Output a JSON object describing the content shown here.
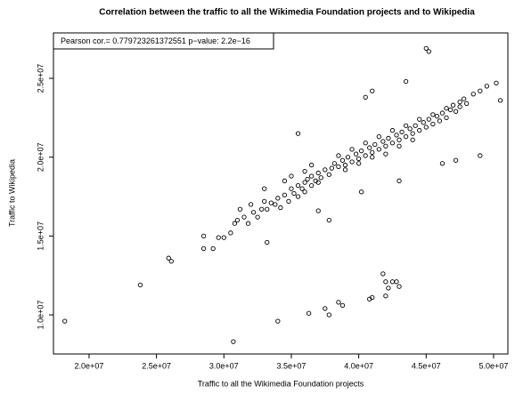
{
  "chart_data": {
    "type": "scatter",
    "title": "Correlation between the traffic to all the Wikimedia Foundation projects and to Wikipedia",
    "x_label": "Traffic to all the Wikimedia Foundation projects",
    "y_label": "Traffic to Wikipedia",
    "annotation": "Pearson cor.= 0.779723261372551 p−value:  2.2e−16",
    "color": "#000000",
    "xlim": [
      17360000.0,
      51060000.0
    ],
    "ylim": [
      7520000.0,
      27880000.0
    ],
    "xticks": [
      {
        "value": 20000000.0,
        "label": "2.0e+07"
      },
      {
        "value": 25000000.0,
        "label": "2.5e+07"
      },
      {
        "value": 30000000.0,
        "label": "3.0e+07"
      },
      {
        "value": 35000000.0,
        "label": "3.5e+07"
      },
      {
        "value": 40000000.0,
        "label": "4.0e+07"
      },
      {
        "value": 45000000.0,
        "label": "4.5e+07"
      },
      {
        "value": 50000000.0,
        "label": "5.0e+07"
      }
    ],
    "yticks": [
      {
        "value": 10000000.0,
        "label": "1.0e+07"
      },
      {
        "value": 15000000.0,
        "label": "1.5e+07"
      },
      {
        "value": 20000000.0,
        "label": "2.0e+07"
      },
      {
        "value": 25000000.0,
        "label": "2.5e+07"
      }
    ],
    "x": [
      18200000.0,
      23800000.0,
      25900000.0,
      26100000.0,
      28500000.0,
      29200000.0,
      28500000.0,
      29600000.0,
      30000000.0,
      30500000.0,
      30800000.0,
      31000000.0,
      31200000.0,
      31500000.0,
      31800000.0,
      32000000.0,
      32200000.0,
      32500000.0,
      32800000.0,
      33000000.0,
      33200000.0,
      33200000.0,
      33500000.0,
      33800000.0,
      34000000.0,
      34200000.0,
      34500000.0,
      34800000.0,
      35000000.0,
      35200000.0,
      35500000.0,
      35800000.0,
      36000000.0,
      36200000.0,
      36500000.0,
      36800000.0,
      37000000.0,
      37200000.0,
      37500000.0,
      37800000.0,
      38000000.0,
      38200000.0,
      38500000.0,
      38800000.0,
      39000000.0,
      39200000.0,
      39500000.0,
      39800000.0,
      40000000.0,
      40200000.0,
      40500000.0,
      40800000.0,
      41000000.0,
      41200000.0,
      41500000.0,
      41800000.0,
      42000000.0,
      42200000.0,
      42500000.0,
      42800000.0,
      43000000.0,
      43200000.0,
      43500000.0,
      43800000.0,
      44000000.0,
      44200000.0,
      44500000.0,
      44800000.0,
      45000000.0,
      45200000.0,
      45500000.0,
      45800000.0,
      46000000.0,
      46200000.0,
      46500000.0,
      46800000.0,
      47000000.0,
      47200000.0,
      47500000.0,
      47800000.0,
      48000000.0,
      48500000.0,
      49000000.0,
      49500000.0,
      50200000.0,
      50500000.0,
      45000000.0,
      45200000.0,
      43500000.0,
      41000000.0,
      40500000.0,
      35500000.0,
      37000000.0,
      37800000.0,
      40200000.0,
      43000000.0,
      46200000.0,
      47200000.0,
      49000000.0,
      36300000.0,
      37500000.0,
      37800000.0,
      38500000.0,
      38800000.0,
      40800000.0,
      41000000.0,
      41800000.0,
      42000000.0,
      42200000.0,
      42500000.0,
      42800000.0,
      43000000.0,
      42000000.0,
      34000000.0,
      30700000.0,
      35500000.0,
      36000000.0,
      36500000.0,
      37000000.0,
      39000000.0,
      40000000.0,
      41000000.0,
      42000000.0,
      43000000.0,
      44000000.0,
      38500000.0,
      39500000.0,
      40500000.0,
      41500000.0,
      42500000.0,
      43500000.0,
      44500000.0,
      45500000.0,
      46500000.0,
      47500000.0,
      36000000.0,
      36500000.0,
      35000000.0,
      34500000.0,
      33000000.0
    ],
    "values": [
      9600000.0,
      11900000.0,
      13600000.0,
      13400000.0,
      14200000.0,
      14200000.0,
      15000000.0,
      14900000.0,
      14900000.0,
      15200000.0,
      15800000.0,
      16000000.0,
      16700000.0,
      16200000.0,
      15800000.0,
      17000000.0,
      16500000.0,
      16200000.0,
      16700000.0,
      17200000.0,
      16700000.0,
      14600000.0,
      17100000.0,
      17000000.0,
      17400000.0,
      16800000.0,
      17600000.0,
      17200000.0,
      18000000.0,
      17700000.0,
      18200000.0,
      18000000.0,
      18400000.0,
      18600000.0,
      18800000.0,
      18500000.0,
      19000000.0,
      18700000.0,
      19200000.0,
      18900000.0,
      19300000.0,
      19600000.0,
      19400000.0,
      19800000.0,
      19500000.0,
      20000000.0,
      19700000.0,
      20200000.0,
      19900000.0,
      20400000.0,
      20100000.0,
      20600000.0,
      20300000.0,
      20800000.0,
      20500000.0,
      21000000.0,
      20700000.0,
      21200000.0,
      20900000.0,
      21400000.0,
      21100000.0,
      21600000.0,
      21300000.0,
      21800000.0,
      21500000.0,
      22000000.0,
      21700000.0,
      22200000.0,
      21900000.0,
      22400000.0,
      22100000.0,
      22600000.0,
      22300000.0,
      22800000.0,
      22500000.0,
      23000000.0,
      23300000.0,
      22900000.0,
      23500000.0,
      23700000.0,
      23400000.0,
      24000000.0,
      24200000.0,
      24500000.0,
      24700000.0,
      23600000.0,
      26900000.0,
      26700000.0,
      24800000.0,
      24200000.0,
      23800000.0,
      21500000.0,
      16600000.0,
      16000000.0,
      17800000.0,
      18500000.0,
      19600000.0,
      19800000.0,
      20100000.0,
      10100000.0,
      10400000.0,
      10000000.0,
      10800000.0,
      10600000.0,
      11000000.0,
      11100000.0,
      12600000.0,
      12100000.0,
      11700000.0,
      12100000.0,
      12100000.0,
      11800000.0,
      11200000.0,
      9600000.0,
      8300000.0,
      17500000.0,
      17800000.0,
      18200000.0,
      18400000.0,
      19200000.0,
      19600000.0,
      20000000.0,
      20200000.0,
      20700000.0,
      21100000.0,
      20100000.0,
      20500000.0,
      20900000.0,
      21300000.0,
      21700000.0,
      22000000.0,
      22400000.0,
      22700000.0,
      23100000.0,
      23200000.0,
      19100000.0,
      19500000.0,
      18800000.0,
      18500000.0,
      18000000.0
    ]
  }
}
